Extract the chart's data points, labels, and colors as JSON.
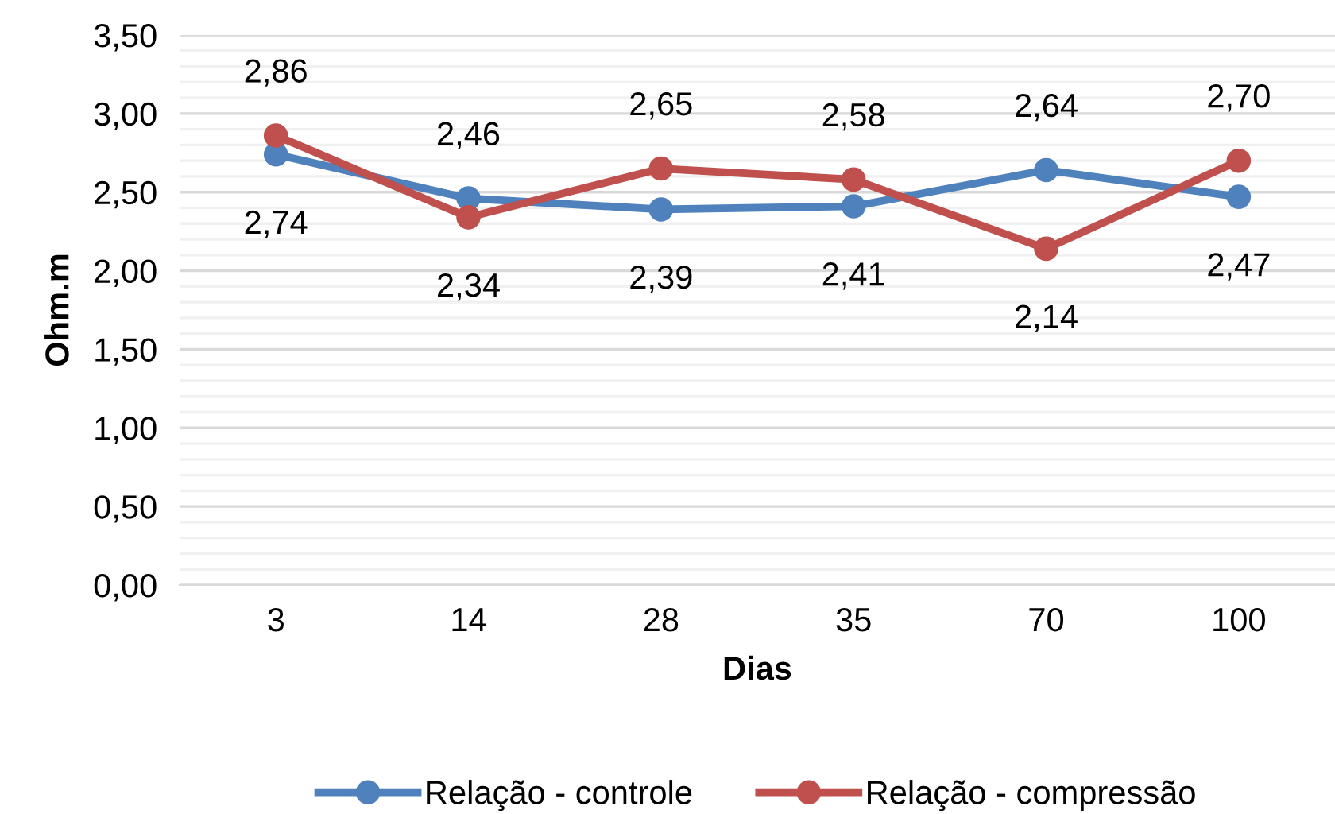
{
  "chart_data": {
    "type": "line",
    "xlabel": "Dias",
    "ylabel": "Ohm.m",
    "categories": [
      "3",
      "14",
      "28",
      "35",
      "70",
      "100"
    ],
    "series": [
      {
        "name": "Relação - controle",
        "color": "#4f81bd",
        "values": [
          2.74,
          2.46,
          2.39,
          2.41,
          2.64,
          2.47
        ],
        "value_labels": [
          "2,74",
          "2,46",
          "2,39",
          "2,41",
          "2,64",
          "2,47"
        ]
      },
      {
        "name": "Relação - compressão",
        "color": "#c0504d",
        "values": [
          2.86,
          2.34,
          2.65,
          2.58,
          2.14,
          2.7
        ],
        "value_labels": [
          "2,86",
          "2,34",
          "2,65",
          "2,58",
          "2,14",
          "2,70"
        ]
      }
    ],
    "ylim": [
      0,
      3.5
    ],
    "yticks": [
      {
        "value": 0,
        "label": "0,00"
      },
      {
        "value": 0.1,
        "label": null
      },
      {
        "value": 0.2,
        "label": null
      },
      {
        "value": 0.3,
        "label": null
      },
      {
        "value": 0.4,
        "label": null
      },
      {
        "value": 0.5,
        "label": "0,50"
      },
      {
        "value": 0.6,
        "label": null
      },
      {
        "value": 0.7,
        "label": null
      },
      {
        "value": 0.8,
        "label": null
      },
      {
        "value": 0.9,
        "label": null
      },
      {
        "value": 1.0,
        "label": "1,00"
      },
      {
        "value": 1.1,
        "label": null
      },
      {
        "value": 1.2,
        "label": null
      },
      {
        "value": 1.3,
        "label": null
      },
      {
        "value": 1.4,
        "label": null
      },
      {
        "value": 1.5,
        "label": "1,50"
      },
      {
        "value": 1.6,
        "label": null
      },
      {
        "value": 1.7,
        "label": null
      },
      {
        "value": 1.8,
        "label": null
      },
      {
        "value": 1.9,
        "label": null
      },
      {
        "value": 2.0,
        "label": "2,00"
      },
      {
        "value": 2.1,
        "label": null
      },
      {
        "value": 2.2,
        "label": null
      },
      {
        "value": 2.3,
        "label": null
      },
      {
        "value": 2.4,
        "label": null
      },
      {
        "value": 2.5,
        "label": "2,50"
      },
      {
        "value": 2.6,
        "label": null
      },
      {
        "value": 2.7,
        "label": null
      },
      {
        "value": 2.8,
        "label": null
      },
      {
        "value": 2.9,
        "label": null
      },
      {
        "value": 3.0,
        "label": "3,00"
      },
      {
        "value": 3.1,
        "label": null
      },
      {
        "value": 3.2,
        "label": null
      },
      {
        "value": 3.3,
        "label": null
      },
      {
        "value": 3.4,
        "label": null
      },
      {
        "value": 3.5,
        "label": "3,50"
      }
    ],
    "grid": "y",
    "legend": "bottom",
    "marker": "circle",
    "line_style": "solid"
  }
}
